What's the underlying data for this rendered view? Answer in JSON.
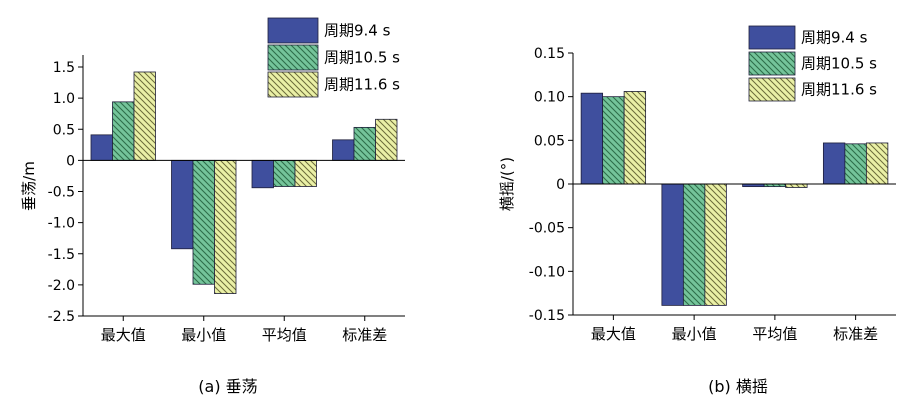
{
  "chart_data": [
    {
      "type": "bar",
      "panel": "a",
      "caption": "(a) 垂荡",
      "title": "",
      "xlabel": "",
      "ylabel": "垂荡/m",
      "categories": [
        "最大值",
        "最小值",
        "平均值",
        "标准差"
      ],
      "series": [
        {
          "name": "周期9.4 s",
          "values": [
            0.41,
            -1.42,
            -0.44,
            0.33
          ]
        },
        {
          "name": "周期10.5 s",
          "values": [
            0.94,
            -1.99,
            -0.42,
            0.53
          ]
        },
        {
          "name": "周期11.6 s",
          "values": [
            1.42,
            -2.14,
            -0.42,
            0.66
          ]
        }
      ],
      "ylim": [
        -2.5,
        1.6
      ],
      "yticks": [
        -2.5,
        -2.0,
        -1.5,
        -1.0,
        -0.5,
        0,
        0.5,
        1.0,
        1.5
      ],
      "ytick_labels": [
        "-2.5",
        "-2.0",
        "-1.5",
        "-1.0",
        "-0.5",
        "0",
        "0.5",
        "1.0",
        "1.5"
      ],
      "grid": false,
      "legend_position": "top-right"
    },
    {
      "type": "bar",
      "panel": "b",
      "caption": "(b) 横摇",
      "title": "",
      "xlabel": "",
      "ylabel": "横摇/(°)",
      "categories": [
        "最大值",
        "最小值",
        "平均值",
        "标准差"
      ],
      "series": [
        {
          "name": "周期9.4 s",
          "values": [
            0.104,
            -0.139,
            -0.003,
            0.047
          ]
        },
        {
          "name": "周期10.5 s",
          "values": [
            0.1,
            -0.139,
            -0.003,
            0.046
          ]
        },
        {
          "name": "周期11.6 s",
          "values": [
            0.106,
            -0.139,
            -0.004,
            0.047
          ]
        }
      ],
      "ylim": [
        -0.15,
        0.15
      ],
      "yticks": [
        -0.15,
        -0.1,
        -0.05,
        0,
        0.05,
        0.1,
        0.15
      ],
      "ytick_labels": [
        "-0.15",
        "-0.10",
        "-0.05",
        "0",
        "0.05",
        "0.10",
        "0.15"
      ],
      "grid": false,
      "legend_position": "top-right"
    }
  ],
  "colors": {
    "series": [
      "#3f4f9e",
      "#74c49a",
      "#eaf0a6"
    ],
    "axis": "#000000"
  }
}
